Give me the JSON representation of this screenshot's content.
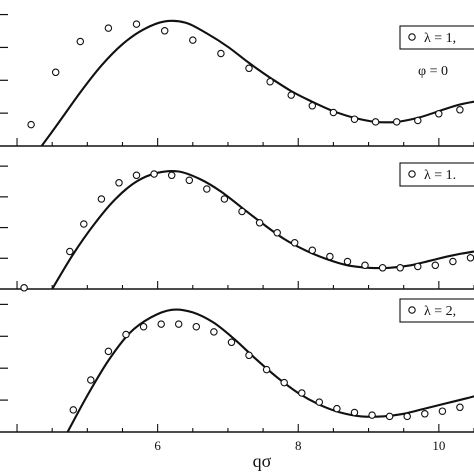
{
  "chart_data": {
    "type": "line",
    "xlabel": "qσ",
    "x_ticks": [
      6,
      8,
      10
    ],
    "xlim": [
      3.9,
      10.5
    ],
    "panels": [
      {
        "legend": "λ = 1,",
        "annotation": "φ = 0",
        "ylim": [
          0,
          1
        ],
        "curve": {
          "x": [
            4.35,
            4.6,
            4.9,
            5.2,
            5.5,
            5.8,
            6.1,
            6.4,
            6.7,
            7.0,
            7.3,
            7.6,
            7.9,
            8.2,
            8.5,
            8.8,
            9.1,
            9.4,
            9.7,
            10.0,
            10.3,
            10.6
          ],
          "y": [
            0.0,
            0.18,
            0.4,
            0.6,
            0.76,
            0.87,
            0.93,
            0.92,
            0.84,
            0.74,
            0.62,
            0.51,
            0.41,
            0.33,
            0.26,
            0.21,
            0.18,
            0.18,
            0.21,
            0.26,
            0.31,
            0.34
          ]
        },
        "points": {
          "x": [
            4.2,
            4.55,
            4.9,
            5.3,
            5.7,
            6.1,
            6.5,
            6.9,
            7.3,
            7.6,
            7.9,
            8.2,
            8.5,
            8.8,
            9.1,
            9.4,
            9.7,
            10.0,
            10.3
          ],
          "y": [
            0.16,
            0.55,
            0.78,
            0.88,
            0.91,
            0.86,
            0.79,
            0.69,
            0.58,
            0.48,
            0.38,
            0.3,
            0.25,
            0.2,
            0.18,
            0.18,
            0.19,
            0.24,
            0.27
          ]
        }
      },
      {
        "legend": "λ = 1.",
        "annotation": "",
        "ylim": [
          0,
          1
        ],
        "curve": {
          "x": [
            4.5,
            4.8,
            5.1,
            5.4,
            5.7,
            6.0,
            6.3,
            6.6,
            6.9,
            7.2,
            7.5,
            7.8,
            8.1,
            8.4,
            8.7,
            9.0,
            9.3,
            9.6,
            9.9,
            10.2,
            10.5
          ],
          "y": [
            0.0,
            0.28,
            0.52,
            0.72,
            0.86,
            0.93,
            0.94,
            0.88,
            0.78,
            0.65,
            0.52,
            0.4,
            0.31,
            0.24,
            0.19,
            0.17,
            0.17,
            0.19,
            0.23,
            0.27,
            0.3
          ]
        },
        "points": {
          "x": [
            4.1,
            4.75,
            4.95,
            5.2,
            5.45,
            5.7,
            5.95,
            6.2,
            6.45,
            6.7,
            6.95,
            7.2,
            7.45,
            7.7,
            7.95,
            8.2,
            8.45,
            8.7,
            8.95,
            9.2,
            9.45,
            9.7,
            9.95,
            10.2,
            10.45
          ],
          "y": [
            0.01,
            0.3,
            0.52,
            0.72,
            0.85,
            0.91,
            0.92,
            0.91,
            0.87,
            0.8,
            0.72,
            0.62,
            0.53,
            0.45,
            0.37,
            0.31,
            0.26,
            0.22,
            0.19,
            0.17,
            0.17,
            0.18,
            0.19,
            0.22,
            0.25
          ]
        }
      },
      {
        "legend": "λ = 2,",
        "annotation": "",
        "ylim": [
          0,
          1
        ],
        "curve": {
          "x": [
            4.72,
            5.0,
            5.3,
            5.6,
            5.9,
            6.2,
            6.5,
            6.8,
            7.1,
            7.4,
            7.7,
            8.0,
            8.3,
            8.6,
            8.9,
            9.2,
            9.5,
            9.8,
            10.1,
            10.4,
            10.6
          ],
          "y": [
            0.0,
            0.28,
            0.55,
            0.76,
            0.88,
            0.94,
            0.92,
            0.84,
            0.71,
            0.56,
            0.42,
            0.3,
            0.21,
            0.15,
            0.12,
            0.12,
            0.14,
            0.18,
            0.22,
            0.26,
            0.29
          ]
        },
        "points": {
          "x": [
            4.8,
            5.05,
            5.3,
            5.55,
            5.8,
            6.05,
            6.3,
            6.55,
            6.8,
            7.05,
            7.3,
            7.55,
            7.8,
            8.05,
            8.3,
            8.55,
            8.8,
            9.05,
            9.3,
            9.55,
            9.8,
            10.05,
            10.3
          ],
          "y": [
            0.17,
            0.4,
            0.62,
            0.75,
            0.81,
            0.83,
            0.83,
            0.81,
            0.77,
            0.69,
            0.59,
            0.48,
            0.38,
            0.3,
            0.23,
            0.18,
            0.15,
            0.13,
            0.12,
            0.12,
            0.14,
            0.16,
            0.19
          ]
        }
      }
    ]
  }
}
